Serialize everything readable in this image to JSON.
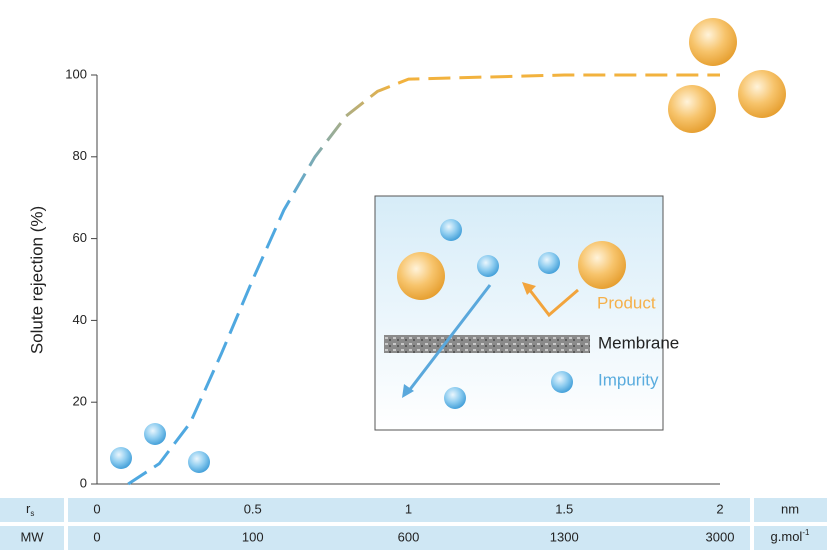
{
  "chart_data": {
    "type": "line",
    "ylabel": "Solute rejection (%)",
    "x": [
      0.1,
      0.2,
      0.3,
      0.4,
      0.5,
      0.6,
      0.7,
      0.8,
      0.9,
      1.0,
      1.5,
      2.0
    ],
    "values": [
      0,
      5,
      15,
      32,
      50,
      67,
      80,
      90,
      96,
      99,
      100,
      100
    ],
    "colors": [
      "#4fa8e0",
      "#f2b23e"
    ],
    "xlim": [
      0,
      2
    ],
    "ylim": [
      0,
      100
    ],
    "xticks": [
      0,
      0.5,
      1,
      1.5,
      2
    ],
    "yticks": [
      0,
      20,
      40,
      60,
      80,
      100
    ],
    "xlabel": {
      "main": "r",
      "sub": "s"
    },
    "xunit": "nm",
    "mw_row": {
      "label": "MW",
      "values": [
        0,
        100,
        600,
        1300,
        3000
      ],
      "unit": "g.mol",
      "unit_sup": "-1"
    }
  },
  "inset": {
    "product": "Product",
    "membrane": "Membrane",
    "impurity": "Impurity"
  }
}
